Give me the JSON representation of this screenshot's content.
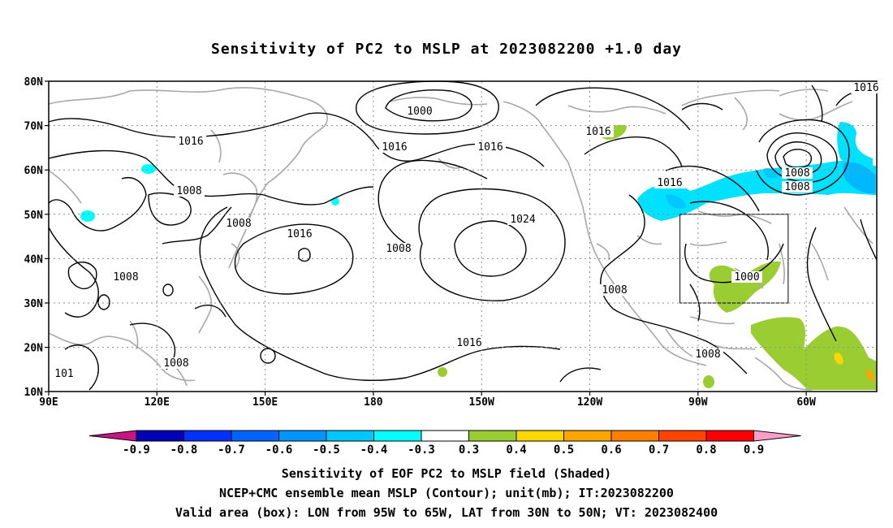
{
  "title": "Sensitivity of PC2 to MSLP at 2023082200 +1.0 day",
  "lat_labels": [
    "80N",
    "70N",
    "60N",
    "50N",
    "40N",
    "30N",
    "20N",
    "10N"
  ],
  "lon_labels": [
    "90E",
    "120E",
    "150E",
    "180",
    "150W",
    "120W",
    "90W",
    "60W"
  ],
  "contour_labels": [
    {
      "text": "1000"
    },
    {
      "text": "1016"
    },
    {
      "text": "1016"
    },
    {
      "text": "1016"
    },
    {
      "text": "1016"
    },
    {
      "text": "1008"
    },
    {
      "text": "1008"
    },
    {
      "text": "1016"
    },
    {
      "text": "1024"
    },
    {
      "text": "1008"
    },
    {
      "text": "1008"
    },
    {
      "text": "1016"
    },
    {
      "text": "1016"
    },
    {
      "text": "1000"
    },
    {
      "text": "1008"
    },
    {
      "text": "1008"
    },
    {
      "text": "1016"
    },
    {
      "text": "1008"
    },
    {
      "text": "1008"
    },
    {
      "text": "1008"
    },
    {
      "text": "101"
    }
  ],
  "colorbar": {
    "labels": [
      "-0.9",
      "-0.8",
      "-0.7",
      "-0.6",
      "-0.5",
      "-0.4",
      "-0.3",
      "0.3",
      "0.4",
      "0.5",
      "0.6",
      "0.7",
      "0.8",
      "0.9"
    ],
    "colors": [
      "#0000b4",
      "#0032ff",
      "#0064ff",
      "#0096ff",
      "#00c8ff",
      "#00ffff",
      "#ffffff",
      "#9acd32",
      "#ffd700",
      "#ffa500",
      "#ff7f00",
      "#ff4500",
      "#ff0000"
    ],
    "left_arrow_color": "#c71585",
    "right_arrow_color": "#ff9ec8"
  },
  "captions": {
    "line1": "Sensitivity of EOF PC2 to MSLP field (Shaded)",
    "line2": "NCEP+CMC ensemble mean MSLP (Contour); unit(mb); IT:2023082200",
    "line3": "Valid area (box): LON from 95W to 65W, LAT from 30N to 50N; VT: 2023082400"
  },
  "valid_box": {
    "lon_min": -95,
    "lon_max": -65,
    "lat_min": 30,
    "lat_max": 50
  }
}
